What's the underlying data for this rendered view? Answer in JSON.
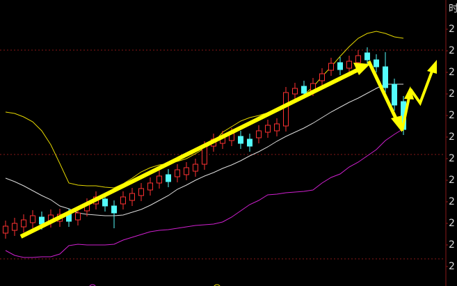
{
  "chart_data": {
    "type": "candlestick",
    "corner_label": "时",
    "categories": [
      null,
      null,
      null,
      null,
      null,
      null,
      null,
      null,
      null,
      null,
      null,
      null,
      null,
      null,
      null,
      null,
      null,
      null,
      null,
      null,
      null,
      null,
      null,
      null,
      null,
      null,
      null,
      null,
      null,
      null,
      null,
      null,
      null,
      null,
      null,
      null,
      null,
      null,
      null,
      null,
      null,
      null,
      null,
      null,
      null
    ],
    "open": [
      7.6,
      8.0,
      8.5,
      9.1,
      9.9,
      9.2,
      9.3,
      10.3,
      9.5,
      10.8,
      11.8,
      12.5,
      11.5,
      11.8,
      12.3,
      13.0,
      13.8,
      14.8,
      16.0,
      15.7,
      16.0,
      16.5,
      17.5,
      20.1,
      20.5,
      20.9,
      21.5,
      21.1,
      21.3,
      22.1,
      22.3,
      23.0,
      27.6,
      28.7,
      28.1,
      29.5,
      31.0,
      32.1,
      31.3,
      32.1,
      33.5,
      32.5,
      31.5,
      29.0,
      26.5
    ],
    "close": [
      8.6,
      9.0,
      9.5,
      10.1,
      8.9,
      10.2,
      10.3,
      9.3,
      10.5,
      11.8,
      12.8,
      11.5,
      10.5,
      12.8,
      13.3,
      14.0,
      14.8,
      15.8,
      15.0,
      16.7,
      17.0,
      17.5,
      20.0,
      21.1,
      21.5,
      21.9,
      20.5,
      20.1,
      22.3,
      23.1,
      23.3,
      27.8,
      28.4,
      27.7,
      29.1,
      30.5,
      32.0,
      31.1,
      32.3,
      33.1,
      32.5,
      31.5,
      28.5,
      26.0,
      22.5
    ],
    "high": [
      9.4,
      9.8,
      10.3,
      10.9,
      10.7,
      11.0,
      11.1,
      11.1,
      11.3,
      12.6,
      13.6,
      13.3,
      12.3,
      13.6,
      14.1,
      14.8,
      15.6,
      16.6,
      16.8,
      17.5,
      17.8,
      18.3,
      20.8,
      21.9,
      22.3,
      22.7,
      22.3,
      21.9,
      23.1,
      23.9,
      24.1,
      28.6,
      29.2,
      29.5,
      29.9,
      31.3,
      32.8,
      32.9,
      33.1,
      33.9,
      34.3,
      33.3,
      33.6,
      29.8,
      27.3
    ],
    "low": [
      6.8,
      7.2,
      7.7,
      8.3,
      8.1,
      8.4,
      8.5,
      8.5,
      8.7,
      10.0,
      11.0,
      10.7,
      8.3,
      11.0,
      11.5,
      12.2,
      13.0,
      14.0,
      14.2,
      14.9,
      15.2,
      15.7,
      16.7,
      19.3,
      19.7,
      20.1,
      19.7,
      19.3,
      20.5,
      21.3,
      21.5,
      22.2,
      26.8,
      26.9,
      27.3,
      28.7,
      30.2,
      30.3,
      30.5,
      31.3,
      31.7,
      30.7,
      27.7,
      25.2,
      21.7
    ],
    "up_color": "#ff3232",
    "down_color": "#54fcfc",
    "lines": [
      {
        "color": "#e6d800",
        "values": [
          25.0,
          24.8,
          24.3,
          23.6,
          22.3,
          20.3,
          17.6,
          14.8,
          14.5,
          14.4,
          14.4,
          14.2,
          14.1,
          14.7,
          15.5,
          16.4,
          17.0,
          17.4,
          17.6,
          17.9,
          18.3,
          19.0,
          19.8,
          20.6,
          22.1,
          22.9,
          23.7,
          24.2,
          24.5,
          24.9,
          25.3,
          25.8,
          26.5,
          27.5,
          28.6,
          30.1,
          31.5,
          33.0,
          34.4,
          35.6,
          36.3,
          36.6,
          36.3,
          35.8,
          35.6
        ]
      },
      {
        "color": "#dddddd",
        "values": [
          15.5,
          15.0,
          14.4,
          13.7,
          13.0,
          12.4,
          11.5,
          11.1,
          10.5,
          10.3,
          10.2,
          10.1,
          10.1,
          10.2,
          10.6,
          11.0,
          11.6,
          12.3,
          13.0,
          13.9,
          14.5,
          15.2,
          15.8,
          16.3,
          16.9,
          17.4,
          18.0,
          18.7,
          19.3,
          20.0,
          20.8,
          21.5,
          22.1,
          22.7,
          23.4,
          24.2,
          25.0,
          25.7,
          26.4,
          27.0,
          27.7,
          28.4,
          29.0,
          29.0,
          29.0
        ]
      },
      {
        "color": "#d020d0",
        "values": [
          5.1,
          4.4,
          4.1,
          4.1,
          4.2,
          4.2,
          4.6,
          5.8,
          6.0,
          5.9,
          5.9,
          5.9,
          6.0,
          6.6,
          7.0,
          7.4,
          7.8,
          8.0,
          8.1,
          8.3,
          8.5,
          8.7,
          8.8,
          8.9,
          9.2,
          9.9,
          10.8,
          11.7,
          12.3,
          13.1,
          13.2,
          13.4,
          13.5,
          13.6,
          13.8,
          14.8,
          15.6,
          16.1,
          17.1,
          17.8,
          18.7,
          19.6,
          20.9,
          21.8,
          22.6
        ]
      }
    ],
    "ylim": [
      0,
      41.1
    ],
    "yticks": [
      {
        "value": 36.9,
        "label": "2"
      },
      {
        "value": 33.8,
        "label": "2"
      },
      {
        "value": 30.7,
        "label": "2"
      },
      {
        "value": 27.6,
        "label": "2"
      },
      {
        "value": 24.5,
        "label": "2"
      },
      {
        "value": 21.4,
        "label": "2"
      },
      {
        "value": 18.3,
        "label": "2"
      },
      {
        "value": 15.2,
        "label": "2"
      },
      {
        "value": 12.1,
        "label": "2"
      },
      {
        "value": 9.0,
        "label": "2"
      },
      {
        "value": 5.9,
        "label": "2"
      },
      {
        "value": 2.8,
        "label": "2"
      }
    ],
    "grid_lines": [
      33.9,
      18.9,
      3.9
    ],
    "grid_color": "#8a1818"
  }
}
